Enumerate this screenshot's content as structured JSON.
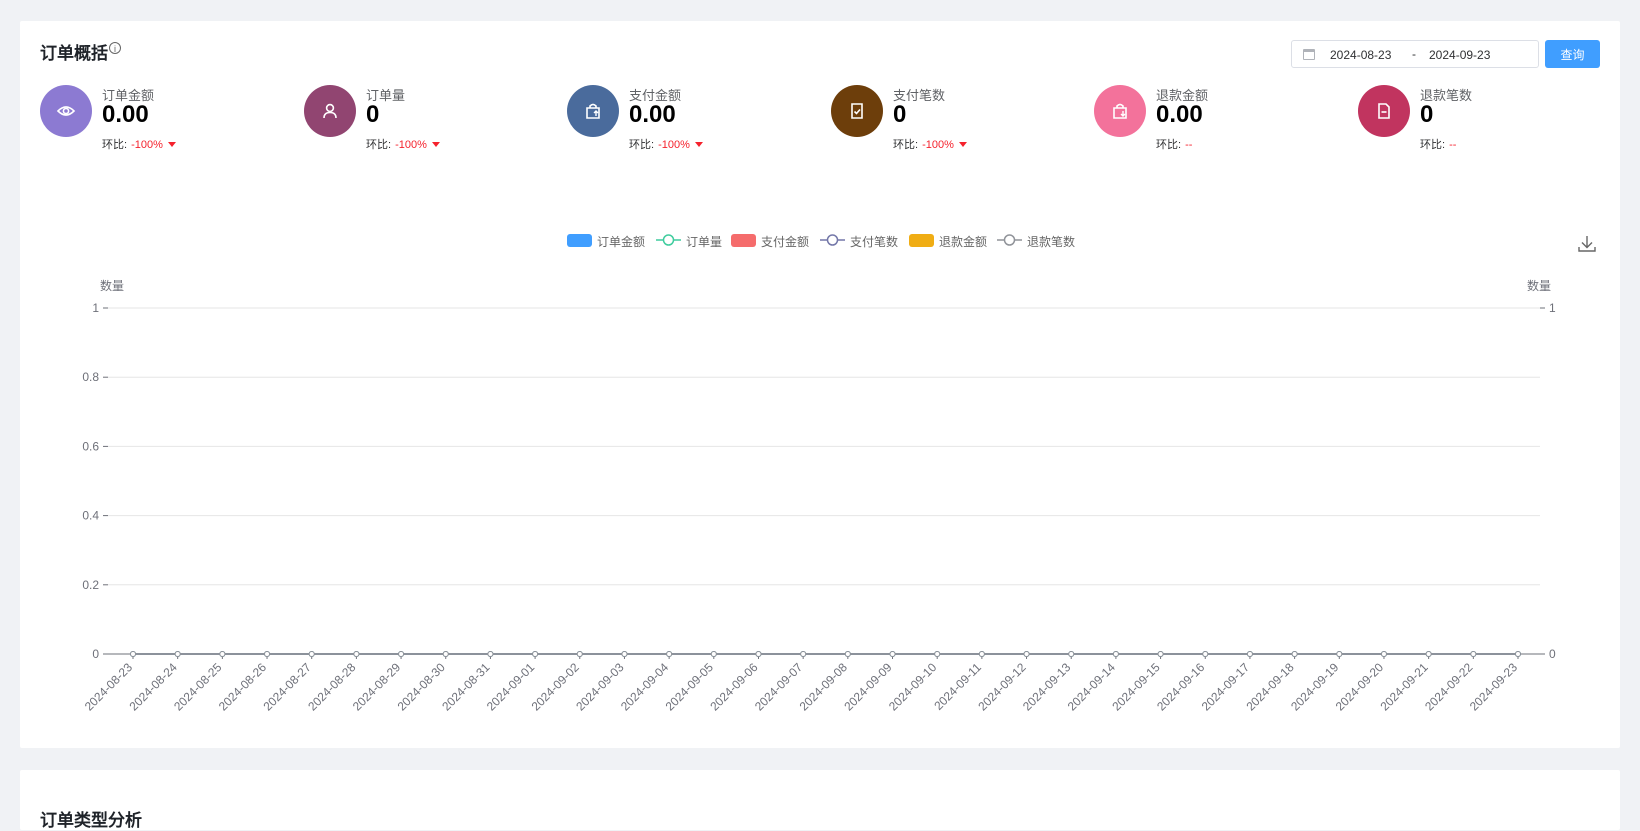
{
  "overview": {
    "title": "订单概括",
    "info_icon": "info-circle-icon",
    "date_range": {
      "start": "2024-08-23",
      "separator": "-",
      "end": "2024-09-23"
    },
    "query_label": "查询"
  },
  "stats": [
    {
      "label": "订单金额",
      "value": "0.00",
      "ratio_label": "环比:",
      "ratio_value": "-100%",
      "trend": "down",
      "icon": "eye-icon",
      "color": "#8c7ad2"
    },
    {
      "label": "订单量",
      "value": "0",
      "ratio_label": "环比:",
      "ratio_value": "-100%",
      "trend": "down",
      "icon": "user-icon",
      "color": "#914571"
    },
    {
      "label": "支付金额",
      "value": "0.00",
      "ratio_label": "环比:",
      "ratio_value": "-100%",
      "trend": "down",
      "icon": "bag-up-icon",
      "color": "#4a6b9c"
    },
    {
      "label": "支付笔数",
      "value": "0",
      "ratio_label": "环比:",
      "ratio_value": "-100%",
      "trend": "down",
      "icon": "doc-check-icon",
      "color": "#6d3e0b"
    },
    {
      "label": "退款金额",
      "value": "0.00",
      "ratio_label": "环比:",
      "ratio_value": "--",
      "trend": "none",
      "icon": "bag-down-icon",
      "color": "#f3729b"
    },
    {
      "label": "退款笔数",
      "value": "0",
      "ratio_label": "环比:",
      "ratio_value": "--",
      "trend": "none",
      "icon": "doc-minus-icon",
      "color": "#c1345f"
    }
  ],
  "chart_data": {
    "type": "line",
    "x": [
      "2024-08-23",
      "2024-08-24",
      "2024-08-25",
      "2024-08-26",
      "2024-08-27",
      "2024-08-28",
      "2024-08-29",
      "2024-08-30",
      "2024-08-31",
      "2024-09-01",
      "2024-09-02",
      "2024-09-03",
      "2024-09-04",
      "2024-09-05",
      "2024-09-06",
      "2024-09-07",
      "2024-09-08",
      "2024-09-09",
      "2024-09-10",
      "2024-09-11",
      "2024-09-12",
      "2024-09-13",
      "2024-09-14",
      "2024-09-15",
      "2024-09-16",
      "2024-09-17",
      "2024-09-18",
      "2024-09-19",
      "2024-09-20",
      "2024-09-21",
      "2024-09-22",
      "2024-09-23"
    ],
    "series": [
      {
        "name": "订单金额",
        "kind": "bar",
        "color": "#409eff",
        "values": [
          0,
          0,
          0,
          0,
          0,
          0,
          0,
          0,
          0,
          0,
          0,
          0,
          0,
          0,
          0,
          0,
          0,
          0,
          0,
          0,
          0,
          0,
          0,
          0,
          0,
          0,
          0,
          0,
          0,
          0,
          0,
          0
        ]
      },
      {
        "name": "订单量",
        "kind": "line",
        "color": "#3fcc9e",
        "values": [
          0,
          0,
          0,
          0,
          0,
          0,
          0,
          0,
          0,
          0,
          0,
          0,
          0,
          0,
          0,
          0,
          0,
          0,
          0,
          0,
          0,
          0,
          0,
          0,
          0,
          0,
          0,
          0,
          0,
          0,
          0,
          0
        ]
      },
      {
        "name": "支付金额",
        "kind": "bar",
        "color": "#f56c6c",
        "values": [
          0,
          0,
          0,
          0,
          0,
          0,
          0,
          0,
          0,
          0,
          0,
          0,
          0,
          0,
          0,
          0,
          0,
          0,
          0,
          0,
          0,
          0,
          0,
          0,
          0,
          0,
          0,
          0,
          0,
          0,
          0,
          0
        ]
      },
      {
        "name": "支付笔数",
        "kind": "line",
        "color": "#7377a8",
        "values": [
          0,
          0,
          0,
          0,
          0,
          0,
          0,
          0,
          0,
          0,
          0,
          0,
          0,
          0,
          0,
          0,
          0,
          0,
          0,
          0,
          0,
          0,
          0,
          0,
          0,
          0,
          0,
          0,
          0,
          0,
          0,
          0
        ]
      },
      {
        "name": "退款金额",
        "kind": "bar",
        "color": "#f0ad14",
        "values": [
          0,
          0,
          0,
          0,
          0,
          0,
          0,
          0,
          0,
          0,
          0,
          0,
          0,
          0,
          0,
          0,
          0,
          0,
          0,
          0,
          0,
          0,
          0,
          0,
          0,
          0,
          0,
          0,
          0,
          0,
          0,
          0
        ]
      },
      {
        "name": "退款笔数",
        "kind": "line",
        "color": "#909399",
        "values": [
          0,
          0,
          0,
          0,
          0,
          0,
          0,
          0,
          0,
          0,
          0,
          0,
          0,
          0,
          0,
          0,
          0,
          0,
          0,
          0,
          0,
          0,
          0,
          0,
          0,
          0,
          0,
          0,
          0,
          0,
          0,
          0
        ]
      }
    ],
    "ylabel_left": "数量",
    "ylabel_right": "数量",
    "yticks_left": [
      "0",
      "0.2",
      "0.4",
      "0.6",
      "0.8",
      "1"
    ],
    "yticks_right": [
      "0",
      "1"
    ],
    "ylim": [
      0,
      1
    ],
    "grid": true,
    "legend_position": "top-center",
    "download_icon": "download-icon"
  },
  "second_section": {
    "title": "订单类型分析"
  }
}
